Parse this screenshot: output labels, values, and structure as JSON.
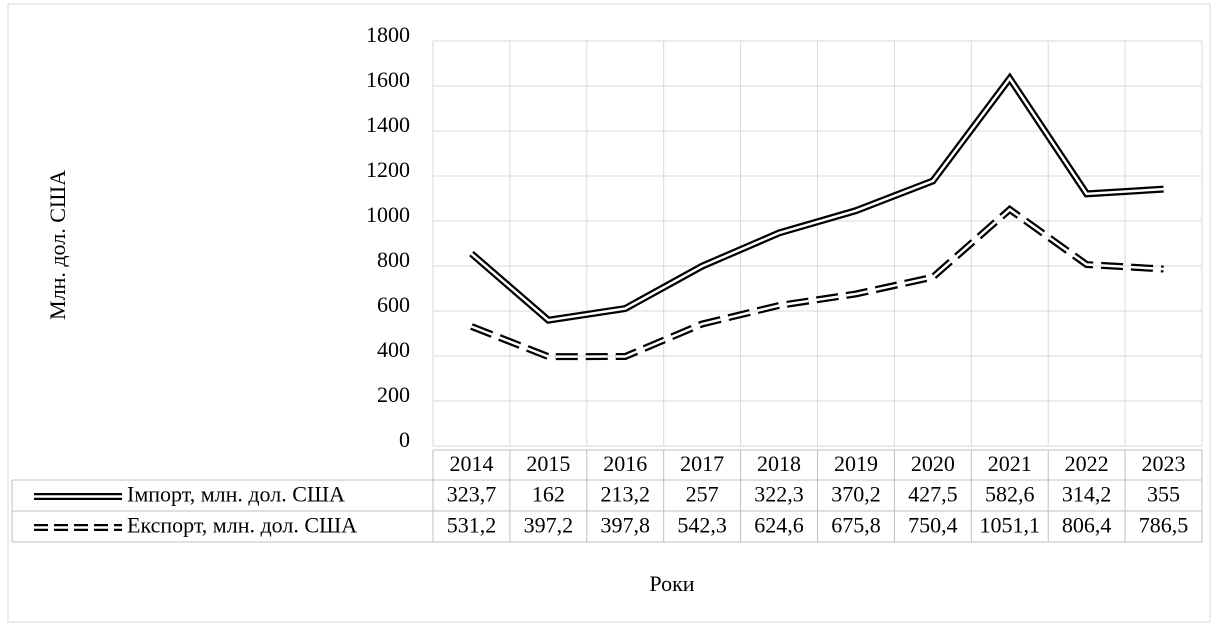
{
  "chart_data": {
    "type": "line",
    "stacked": true,
    "y_label": "Млн. дол. США",
    "x_label": "Роки",
    "categories": [
      "2014",
      "2015",
      "2016",
      "2017",
      "2018",
      "2019",
      "2020",
      "2021",
      "2022",
      "2023"
    ],
    "series": [
      {
        "name": "Імпорт, млн. дол. США",
        "color": "#000000",
        "dashed": false,
        "values": [
          323.7,
          162,
          213.2,
          257,
          322.3,
          370.2,
          427.5,
          582.6,
          314.2,
          355
        ],
        "value_labels": [
          "323,7",
          "162",
          "213,2",
          "257",
          "322,3",
          "370,2",
          "427,5",
          "582,6",
          "314,2",
          "355"
        ]
      },
      {
        "name": "Експорт, млн. дол. США",
        "color": "#000000",
        "dashed": true,
        "values": [
          531.2,
          397.2,
          397.8,
          542.3,
          624.6,
          675.8,
          750.4,
          1051.1,
          806.4,
          786.5
        ],
        "value_labels": [
          "531,2",
          "397,2",
          "397,8",
          "542,3",
          "624,6",
          "675,8",
          "750,4",
          "1051,1",
          "806,4",
          "786,5"
        ]
      }
    ],
    "ylim": [
      0,
      1800
    ],
    "yticks": [
      0,
      200,
      400,
      600,
      800,
      1000,
      1200,
      1400,
      1600,
      1800
    ],
    "grid": true
  }
}
